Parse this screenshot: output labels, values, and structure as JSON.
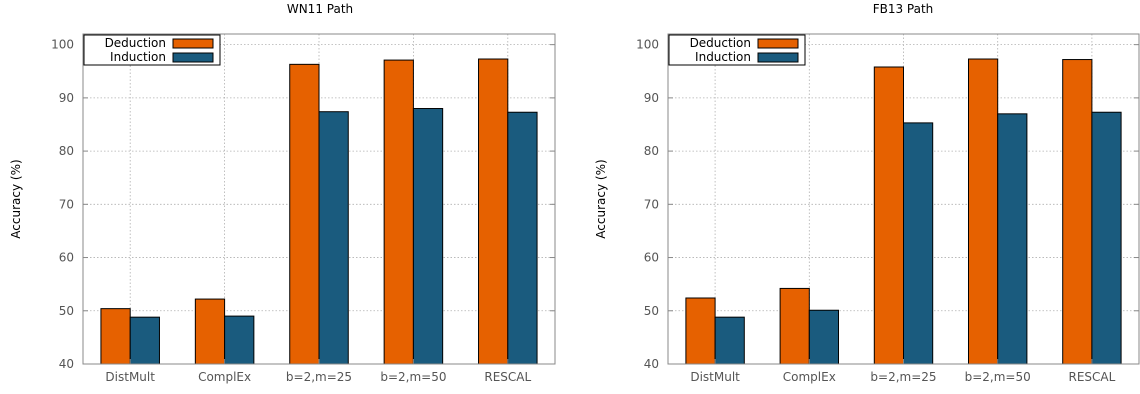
{
  "chart_data": [
    {
      "type": "bar",
      "title": "WN11 Path",
      "xlabel": "",
      "ylabel": "Accuracy (%)",
      "ylim": [
        40,
        102
      ],
      "yticks": [
        40,
        50,
        60,
        70,
        80,
        90,
        100
      ],
      "categories": [
        "DistMult",
        "ComplEx",
        "b=2,m=25",
        "b=2,m=50",
        "RESCAL"
      ],
      "series": [
        {
          "name": "Deduction",
          "color": "#e66100",
          "values": [
            50.4,
            52.2,
            96.3,
            97.1,
            97.3
          ]
        },
        {
          "name": "Induction",
          "color": "#1a5b7e",
          "values": [
            48.8,
            49.0,
            87.4,
            88.0,
            87.3
          ]
        }
      ],
      "grid": true,
      "legend": "top-left"
    },
    {
      "type": "bar",
      "title": "FB13 Path",
      "xlabel": "",
      "ylabel": "Accuracy (%)",
      "ylim": [
        40,
        102
      ],
      "yticks": [
        40,
        50,
        60,
        70,
        80,
        90,
        100
      ],
      "categories": [
        "DistMult",
        "ComplEx",
        "b=2,m=25",
        "b=2,m=50",
        "RESCAL"
      ],
      "series": [
        {
          "name": "Deduction",
          "color": "#e66100",
          "values": [
            52.4,
            54.2,
            95.8,
            97.3,
            97.2
          ]
        },
        {
          "name": "Induction",
          "color": "#1a5b7e",
          "values": [
            48.8,
            50.1,
            85.3,
            87.0,
            87.3
          ]
        }
      ],
      "grid": true,
      "legend": "top-left"
    }
  ]
}
